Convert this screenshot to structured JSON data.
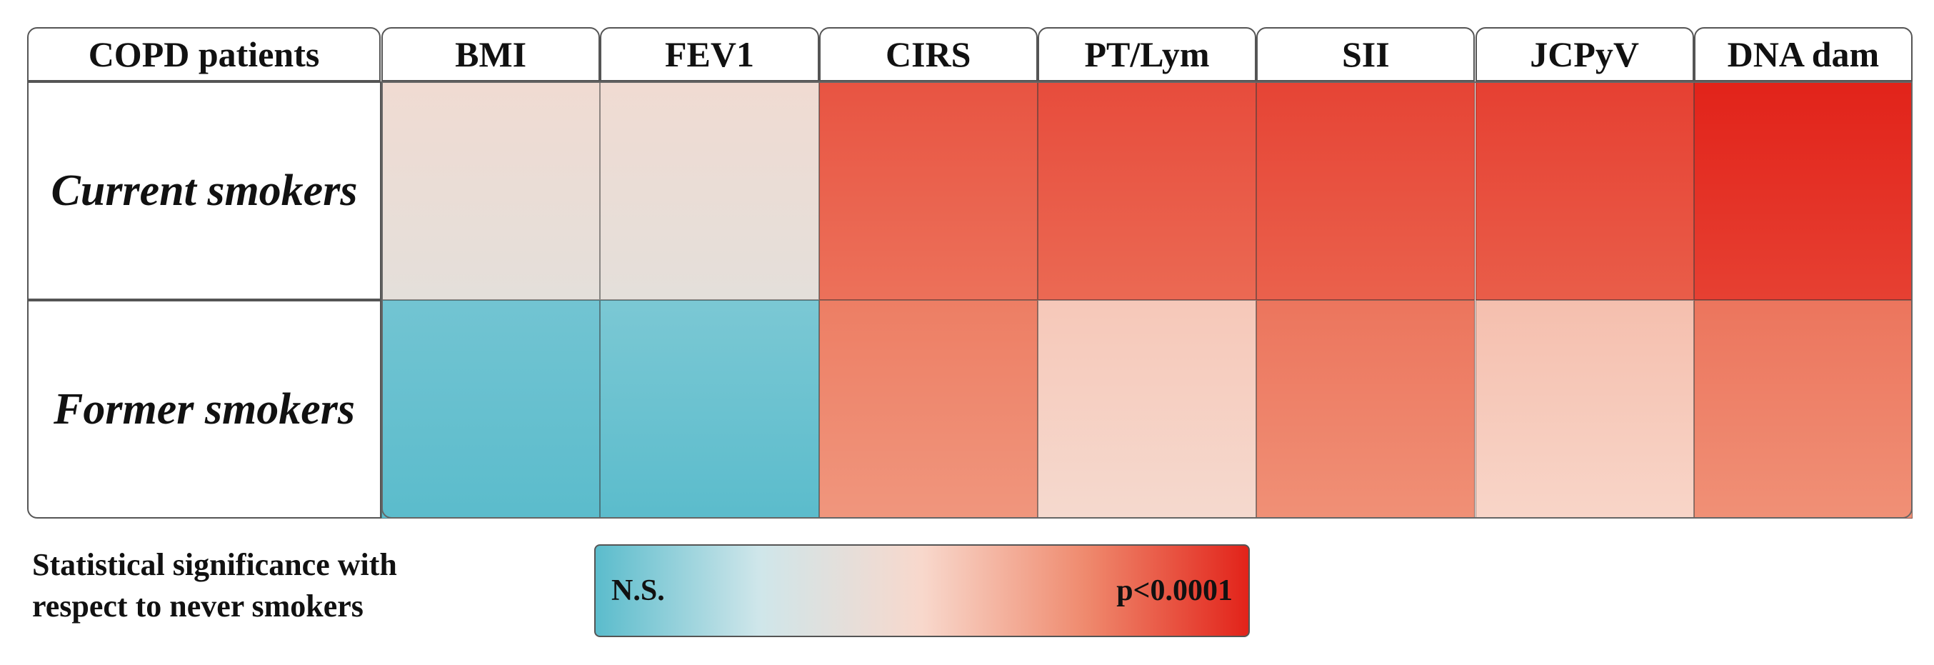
{
  "chart_data": {
    "type": "heatmap",
    "corner_label": "COPD patients",
    "columns": [
      "BMI",
      "FEV1",
      "CIRS",
      "PT/Lym",
      "SII",
      "JCPyV",
      "DNA dam"
    ],
    "rows": [
      "Current smokers",
      "Former smokers"
    ],
    "values": [
      [
        0.45,
        0.45,
        0.88,
        0.9,
        0.92,
        0.93,
        1.0
      ],
      [
        0.05,
        0.07,
        0.78,
        0.55,
        0.8,
        0.58,
        0.8
      ]
    ],
    "legend": {
      "text_line1": "Statistical significance with",
      "text_line2": "respect to never smokers",
      "low_label": "N.S.",
      "high_label": "p<0.0001",
      "colors": [
        "#5bbccc",
        "#cfe6ea",
        "#f8d8cc",
        "#ef8a6e",
        "#e2231a"
      ]
    }
  }
}
